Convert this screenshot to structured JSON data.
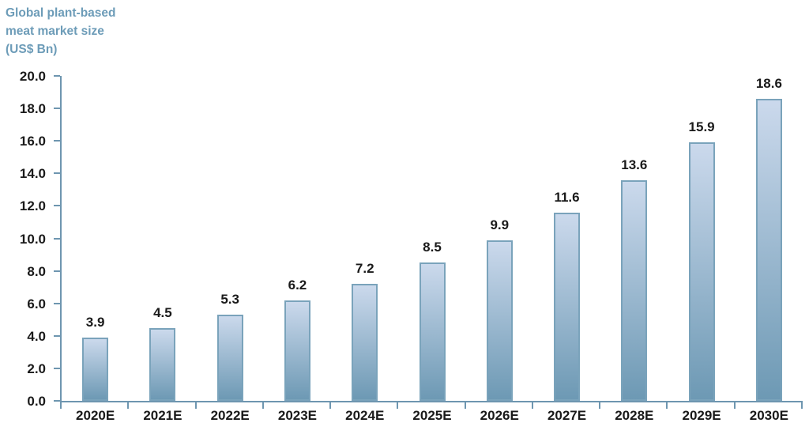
{
  "chart_data": {
    "type": "bar",
    "title": "Global plant-based\nmeat market size\n (US$ Bn)",
    "categories": [
      "2020E",
      "2021E",
      "2022E",
      "2023E",
      "2024E",
      "2025E",
      "2026E",
      "2027E",
      "2028E",
      "2029E",
      "2030E"
    ],
    "values": [
      3.9,
      4.5,
      5.3,
      6.2,
      7.2,
      8.5,
      9.9,
      11.6,
      13.6,
      15.9,
      18.6
    ],
    "value_labels": [
      "3.9",
      "4.5",
      "5.3",
      "6.2",
      "7.2",
      "8.5",
      "9.9",
      "11.6",
      "13.6",
      "15.9",
      "18.6"
    ],
    "xlabel": "",
    "ylabel": "",
    "ylim": [
      0,
      20
    ],
    "y_tick_step": 2,
    "y_tick_labels": [
      "0.0",
      "2.0",
      "4.0",
      "6.0",
      "8.0",
      "10.0",
      "12.0",
      "14.0",
      "16.0",
      "18.0",
      "20.0"
    ],
    "grid": false,
    "legend": false,
    "colors": {
      "title": "#6D9CB8",
      "axis": "#6E96B0",
      "bar_top": "#CBD9EC",
      "bar_bottom": "#6D99B4",
      "bar_border": "#7AA3BB",
      "label": "#1A1A1A"
    }
  }
}
